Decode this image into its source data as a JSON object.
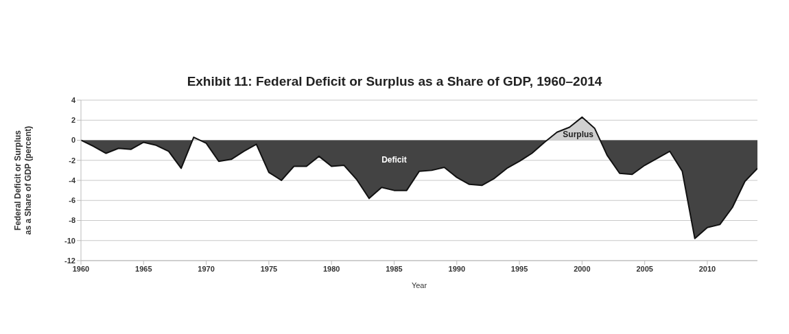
{
  "chart_data": {
    "type": "area",
    "title": "Exhibit 11: Federal Deficit or Surplus as a Share of GDP, 1960–2014",
    "xlabel": "Year",
    "ylabel": "Federal Deficit or Surplus as a Share of GDP (percent)",
    "x": [
      1960,
      1961,
      1962,
      1963,
      1964,
      1965,
      1966,
      1967,
      1968,
      1969,
      1970,
      1971,
      1972,
      1973,
      1974,
      1975,
      1976,
      1977,
      1978,
      1979,
      1980,
      1981,
      1982,
      1983,
      1984,
      1985,
      1986,
      1987,
      1988,
      1989,
      1990,
      1991,
      1992,
      1993,
      1994,
      1995,
      1996,
      1997,
      1998,
      1999,
      2000,
      2001,
      2002,
      2003,
      2004,
      2005,
      2006,
      2007,
      2008,
      2009,
      2010,
      2011,
      2012,
      2013,
      2014
    ],
    "series": [
      {
        "colors": [
          "#434343",
          "#434343",
          "#434343",
          "#434343",
          "#434343",
          "#434343",
          "#434343",
          "#434343",
          "#434343",
          "#d0d0d0",
          "#434343",
          "#434343",
          "#434343",
          "#434343",
          "#434343",
          "#434343",
          "#434343",
          "#434343",
          "#434343",
          "#434343",
          "#434343",
          "#434343",
          "#434343",
          "#434343",
          "#434343",
          "#434343",
          "#434343",
          "#434343",
          "#434343",
          "#434343",
          "#434343",
          "#434343",
          "#434343",
          "#434343",
          "#434343",
          "#434343",
          "#434343",
          "#434343",
          "#d0d0d0",
          "#d0d0d0",
          "#d0d0d0",
          "#d0d0d0",
          "#434343",
          "#434343",
          "#434343",
          "#434343",
          "#434343",
          "#434343",
          "#434343",
          "#434343",
          "#434343",
          "#434343",
          "#434343",
          "#434343",
          "#434343"
        ],
        "values": [
          0,
          -0.6,
          -1.3,
          -0.8,
          -0.9,
          -0.2,
          -0.5,
          -1.1,
          -2.8,
          0.3,
          -0.3,
          -2.1,
          -1.9,
          -1.1,
          -0.4,
          -3.2,
          -4.0,
          -2.6,
          -2.6,
          -1.6,
          -2.6,
          -2.5,
          -3.9,
          -5.8,
          -4.7,
          -5.0,
          -5.0,
          -3.1,
          -3.0,
          -2.7,
          -3.7,
          -4.4,
          -4.5,
          -3.8,
          -2.8,
          -2.1,
          -1.3,
          -0.2,
          0.8,
          1.3,
          2.3,
          1.2,
          -1.5,
          -3.3,
          -3.4,
          -2.5,
          -1.8,
          -1.1,
          -3.1,
          -9.8,
          -8.7,
          -8.4,
          -6.7,
          -4.1,
          -2.8
        ]
      }
    ],
    "annotations": [
      "Deficit",
      "Surplus"
    ],
    "xlim": [
      1960,
      2014
    ],
    "xticks": [
      1960,
      1965,
      1970,
      1975,
      1980,
      1985,
      1990,
      1995,
      2000,
      2005,
      2010
    ],
    "ylim": [
      -12,
      4
    ],
    "yticks": [
      -12,
      -10,
      -8,
      -6,
      -4,
      -2,
      0,
      2,
      4
    ],
    "grid": "y"
  }
}
